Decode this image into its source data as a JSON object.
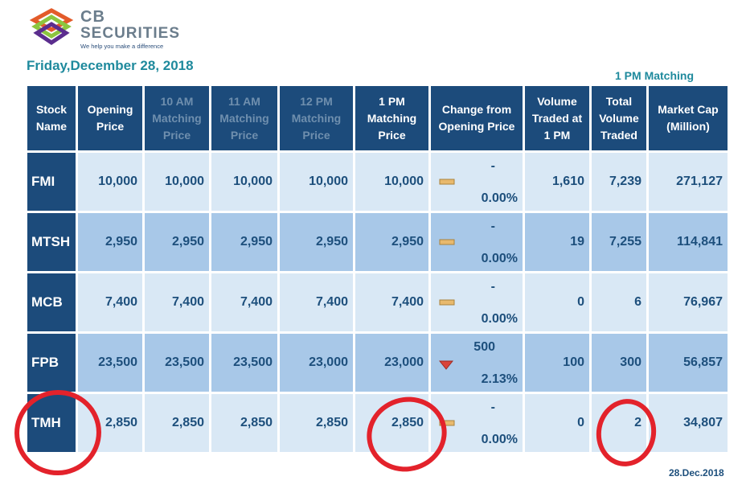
{
  "brand": {
    "line1": "CB",
    "line2": "SECURITIES",
    "tagline": "We help you make a difference"
  },
  "date_title": "Friday,December 28, 2018",
  "session_label": "1 PM Matching",
  "footer_date": "28.Dec.2018",
  "colors": {
    "header_bg": "#1c4b7b",
    "row_light": "#d9e8f5",
    "row_dark": "#a8c8e8",
    "text": "#1d4f7c",
    "accent": "#1f8a9d",
    "unchanged_marker": "#e8b96d",
    "down_marker": "#d9443a",
    "annotation": "#e3222b"
  },
  "table": {
    "headers": {
      "stock": [
        "Stock",
        "Name"
      ],
      "open": [
        "Opening",
        "Price"
      ],
      "am10": [
        "10 AM",
        "Matching",
        "Price"
      ],
      "am11": [
        "11 AM",
        "Matching",
        "Price"
      ],
      "pm12": [
        "12 PM",
        "Matching",
        "Price"
      ],
      "pm1": [
        "1 PM",
        "Matching",
        "Price"
      ],
      "change": [
        "Change from",
        "Opening Price"
      ],
      "vol1": [
        "Volume",
        "Traded at",
        "1 PM"
      ],
      "total": [
        "Total",
        "Volume",
        "Traded"
      ],
      "cap": [
        "Market Cap",
        "(Million)"
      ]
    },
    "rows": [
      {
        "sym": "FMI",
        "open": "10,000",
        "am10": "10,000",
        "am11": "10,000",
        "pm12": "10,000",
        "pm1": "10,000",
        "chg_abs": "-",
        "chg_pct": "0.00%",
        "direction": "unchanged",
        "vol1": "1,610",
        "total": "7,239",
        "cap": "271,127"
      },
      {
        "sym": "MTSH",
        "open": "2,950",
        "am10": "2,950",
        "am11": "2,950",
        "pm12": "2,950",
        "pm1": "2,950",
        "chg_abs": "-",
        "chg_pct": "0.00%",
        "direction": "unchanged",
        "vol1": "19",
        "total": "7,255",
        "cap": "114,841"
      },
      {
        "sym": "MCB",
        "open": "7,400",
        "am10": "7,400",
        "am11": "7,400",
        "pm12": "7,400",
        "pm1": "7,400",
        "chg_abs": "-",
        "chg_pct": "0.00%",
        "direction": "unchanged",
        "vol1": "0",
        "total": "6",
        "cap": "76,967"
      },
      {
        "sym": "FPB",
        "open": "23,500",
        "am10": "23,500",
        "am11": "23,500",
        "pm12": "23,000",
        "pm1": "23,000",
        "chg_abs": "500",
        "chg_pct": "2.13%",
        "direction": "down",
        "vol1": "100",
        "total": "300",
        "cap": "56,857"
      },
      {
        "sym": "TMH",
        "open": "2,850",
        "am10": "2,850",
        "am11": "2,850",
        "pm12": "2,850",
        "pm1": "2,850",
        "chg_abs": "-",
        "chg_pct": "0.00%",
        "direction": "unchanged",
        "vol1": "0",
        "total": "2",
        "cap": "34,807"
      }
    ]
  }
}
